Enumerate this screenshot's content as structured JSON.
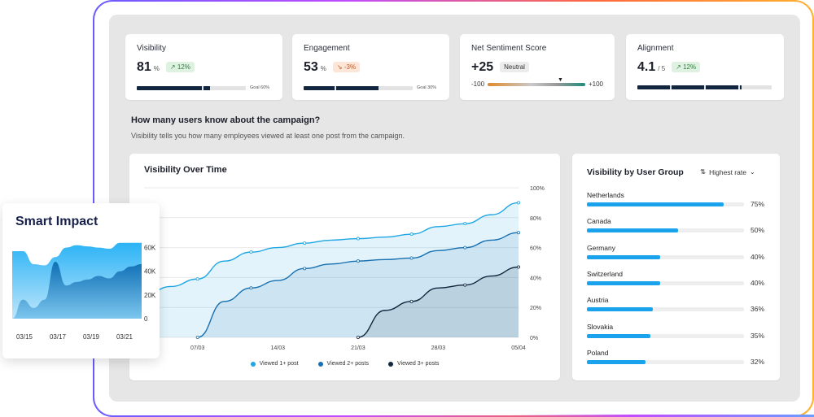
{
  "kpis": [
    {
      "label": "Visibility",
      "value": "81",
      "unit": "%",
      "badge": "12%",
      "badge_type": "up",
      "goal": "Goal 60%",
      "progress": 0.81
    },
    {
      "label": "Engagement",
      "value": "53",
      "unit": "%",
      "badge": "-3%",
      "badge_type": "down",
      "goal": "Goal 30%",
      "progress": 0.53
    },
    {
      "label": "Net Sentiment Score",
      "value": "+25",
      "badge": "Neutral",
      "badge_type": "neutral",
      "scale_min": "-100",
      "scale_max": "+100",
      "score": 25
    },
    {
      "label": "Alignment",
      "value": "4.1",
      "unit": "/ 5",
      "badge": "12%",
      "badge_type": "up",
      "progress": 0.82
    }
  ],
  "section": {
    "title": "How many users know about the campaign?",
    "subtitle": "Visibility tells you how many employees viewed at least one post from the campaign."
  },
  "visibility_chart": {
    "title": "Visibility Over Time",
    "legend": [
      "Viewed 1+ post",
      "Viewed 2+ posts",
      "Viewed 3+ posts"
    ]
  },
  "user_groups": {
    "title": "Visibility by User Group",
    "sort_label": "Highest rate",
    "items": [
      {
        "name": "Netherlands",
        "value": "75%",
        "rate": 0.75
      },
      {
        "name": "Canada",
        "value": "50%",
        "rate": 0.5
      },
      {
        "name": "Germany",
        "value": "40%",
        "rate": 0.4
      },
      {
        "name": "Switzerland",
        "value": "40%",
        "rate": 0.4
      },
      {
        "name": "Austria",
        "value": "36%",
        "rate": 0.36
      },
      {
        "name": "Slovakia",
        "value": "35%",
        "rate": 0.35
      },
      {
        "name": "Poland",
        "value": "32%",
        "rate": 0.32
      }
    ]
  },
  "smart_impact": {
    "title": "Smart Impact"
  },
  "colors": {
    "light_blue": "#1fa6e3",
    "mid_blue": "#1770b0",
    "dark_navy": "#12263f",
    "bar_blue": "#1aa3ec"
  },
  "chart_data": [
    {
      "type": "line",
      "title": "Visibility Over Time",
      "x": [
        "03/03",
        "05/03",
        "07/03",
        "10/03",
        "12/03",
        "14/03",
        "17/03",
        "19/03",
        "21/03",
        "24/03",
        "26/03",
        "28/03",
        "31/03",
        "03/04",
        "05/04"
      ],
      "x_tick_labels": [
        "07/03",
        "14/03",
        "21/03",
        "28/03",
        "05/04"
      ],
      "y_tick_labels": [
        "0%",
        "20%",
        "40%",
        "60%",
        "80%",
        "100%"
      ],
      "ylim": [
        0,
        100
      ],
      "grid": true,
      "legend_position": "bottom",
      "series": [
        {
          "name": "Viewed 1+ post",
          "values": [
            28,
            34,
            39,
            51,
            57,
            60,
            63,
            65,
            66,
            67,
            69,
            74,
            76,
            82,
            90
          ]
        },
        {
          "name": "Viewed 2+ posts",
          "values": [
            null,
            null,
            0,
            24,
            33,
            38,
            46,
            49,
            51,
            52,
            53,
            58,
            60,
            65,
            70
          ]
        },
        {
          "name": "Viewed 3+ posts",
          "values": [
            null,
            null,
            null,
            null,
            null,
            null,
            null,
            null,
            0,
            18,
            24,
            33,
            35,
            41,
            47
          ]
        }
      ]
    },
    {
      "type": "area",
      "title": "Smart Impact",
      "x_tick_labels": [
        "03/15",
        "03/17",
        "03/19",
        "03/21"
      ],
      "y_tick_labels": [
        "0",
        "20K",
        "40K",
        "60K"
      ],
      "ylim": [
        0,
        70000
      ],
      "series": [
        {
          "values": [
            57000,
            57000,
            46000,
            45000,
            52000,
            60000,
            62000,
            61000,
            60000,
            59000,
            64000,
            64000,
            64000
          ]
        },
        {
          "values": [
            0,
            16000,
            9000,
            16000,
            48000,
            28000,
            31000,
            33000,
            36000,
            34000,
            40000,
            44000,
            46000
          ]
        }
      ]
    }
  ]
}
